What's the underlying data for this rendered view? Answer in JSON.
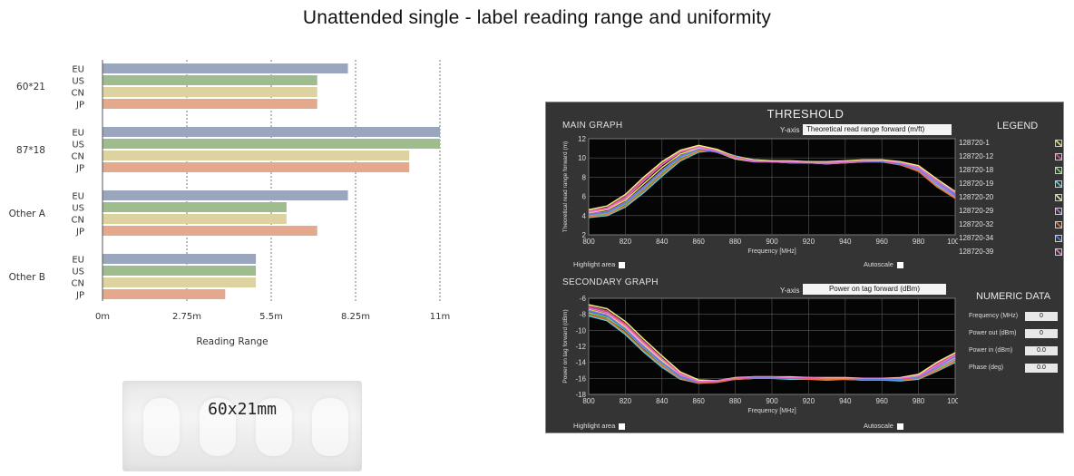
{
  "title": "Unattended single - label reading range and uniformity",
  "chart_data": [
    {
      "type": "bar",
      "orientation": "horizontal",
      "xlabel": "Reading Range",
      "xlim": [
        0,
        11
      ],
      "ticks": [
        "0m",
        "2.75m",
        "5.5m",
        "8.25m",
        "11m"
      ],
      "tick_values": [
        0,
        2.75,
        5.5,
        8.25,
        11
      ],
      "region_colors": {
        "EU": "#9aa6be",
        "US": "#9fbc8e",
        "CN": "#ddd3a1",
        "JP": "#e4a88c"
      },
      "groups": [
        {
          "name": "60*21",
          "bars": [
            {
              "region": "EU",
              "value": 8.0
            },
            {
              "region": "US",
              "value": 7.0
            },
            {
              "region": "CN",
              "value": 7.0
            },
            {
              "region": "JP",
              "value": 7.0
            }
          ]
        },
        {
          "name": "87*18",
          "bars": [
            {
              "region": "EU",
              "value": 11.0
            },
            {
              "region": "US",
              "value": 11.0
            },
            {
              "region": "CN",
              "value": 10.0
            },
            {
              "region": "JP",
              "value": 10.0
            }
          ]
        },
        {
          "name": "Other A",
          "bars": [
            {
              "region": "EU",
              "value": 8.0
            },
            {
              "region": "US",
              "value": 6.0
            },
            {
              "region": "CN",
              "value": 6.0
            },
            {
              "region": "JP",
              "value": 7.0
            }
          ]
        },
        {
          "name": "Other B",
          "bars": [
            {
              "region": "EU",
              "value": 5.0
            },
            {
              "region": "US",
              "value": 5.0
            },
            {
              "region": "CN",
              "value": 5.0
            },
            {
              "region": "JP",
              "value": 4.0
            }
          ]
        }
      ]
    },
    {
      "type": "line",
      "panel": "MAIN GRAPH",
      "xlabel": "Frequency [MHz]",
      "ylabel": "Theoretical read range forward (m)",
      "xlim": [
        800,
        1000
      ],
      "ylim": [
        2,
        12
      ],
      "x_ticks": [
        800,
        820,
        840,
        860,
        880,
        900,
        920,
        940,
        960,
        980,
        1000
      ],
      "y_ticks": [
        2,
        4,
        6,
        8,
        10,
        12
      ],
      "x": [
        800,
        810,
        820,
        830,
        840,
        850,
        860,
        870,
        880,
        890,
        900,
        910,
        920,
        930,
        940,
        950,
        960,
        970,
        980,
        990,
        1000
      ],
      "series": [
        {
          "name": "128720-1",
          "values": [
            4.3,
            4.6,
            5.6,
            7.3,
            9.0,
            10.4,
            11.0,
            10.6,
            9.9,
            9.6,
            9.6,
            9.5,
            9.5,
            9.4,
            9.5,
            9.6,
            9.6,
            9.4,
            8.9,
            7.4,
            6.2
          ]
        },
        {
          "name": "128720-12",
          "values": [
            4.5,
            4.8,
            6.0,
            7.8,
            9.5,
            10.7,
            11.2,
            10.8,
            10.0,
            9.7,
            9.7,
            9.6,
            9.6,
            9.5,
            9.6,
            9.7,
            9.7,
            9.5,
            9.1,
            7.5,
            6.3
          ]
        },
        {
          "name": "128720-18",
          "values": [
            4.0,
            4.2,
            5.2,
            6.8,
            8.5,
            10.0,
            10.8,
            10.7,
            10.1,
            9.7,
            9.6,
            9.6,
            9.5,
            9.5,
            9.5,
            9.7,
            9.6,
            9.3,
            8.7,
            7.1,
            5.9
          ]
        },
        {
          "name": "128720-19",
          "values": [
            3.8,
            4.0,
            4.9,
            6.4,
            8.1,
            9.7,
            10.6,
            10.8,
            10.2,
            9.8,
            9.7,
            9.6,
            9.6,
            9.5,
            9.6,
            9.8,
            9.7,
            9.4,
            8.8,
            7.2,
            6.0
          ]
        },
        {
          "name": "128720-20",
          "values": [
            4.6,
            5.0,
            6.2,
            8.0,
            9.6,
            10.8,
            11.3,
            10.9,
            10.1,
            9.8,
            9.7,
            9.7,
            9.6,
            9.6,
            9.7,
            9.8,
            9.8,
            9.6,
            9.2,
            7.8,
            6.5
          ]
        },
        {
          "name": "128720-29",
          "values": [
            4.2,
            4.4,
            5.4,
            7.0,
            8.7,
            10.2,
            10.9,
            10.6,
            10.0,
            9.6,
            9.6,
            9.5,
            9.5,
            9.4,
            9.5,
            9.6,
            9.6,
            9.3,
            8.7,
            7.3,
            6.0
          ]
        },
        {
          "name": "128720-32",
          "values": [
            3.9,
            4.1,
            5.0,
            6.6,
            8.3,
            9.8,
            10.7,
            10.7,
            10.1,
            9.7,
            9.6,
            9.6,
            9.5,
            9.5,
            9.5,
            9.7,
            9.6,
            9.3,
            8.6,
            7.0,
            5.8
          ]
        },
        {
          "name": "128720-34",
          "values": [
            4.1,
            4.3,
            5.3,
            6.9,
            8.6,
            10.1,
            10.9,
            10.6,
            10.0,
            9.7,
            9.6,
            9.5,
            9.5,
            9.5,
            9.6,
            9.7,
            9.6,
            9.4,
            8.9,
            7.5,
            6.2
          ]
        },
        {
          "name": "128720-39",
          "values": [
            4.4,
            4.7,
            5.8,
            7.6,
            9.3,
            10.6,
            11.1,
            10.7,
            10.0,
            9.7,
            9.6,
            9.6,
            9.5,
            9.5,
            9.6,
            9.7,
            9.7,
            9.5,
            9.0,
            7.6,
            6.4
          ]
        }
      ]
    },
    {
      "type": "line",
      "panel": "SECONDARY GRAPH",
      "xlabel": "Frequency [MHz]",
      "ylabel": "Power on tag forward (dBm)",
      "xlim": [
        800,
        1000
      ],
      "ylim": [
        -18,
        -6
      ],
      "x_ticks": [
        800,
        820,
        840,
        860,
        880,
        900,
        920,
        940,
        960,
        980,
        1000
      ],
      "y_ticks": [
        -6,
        -8,
        -10,
        -12,
        -14,
        -16,
        -18
      ],
      "x": [
        800,
        810,
        820,
        830,
        840,
        850,
        860,
        870,
        880,
        890,
        900,
        910,
        920,
        930,
        940,
        950,
        960,
        970,
        980,
        990,
        1000
      ],
      "series": [
        {
          "name": "128720-1",
          "values": [
            -7.4,
            -8.0,
            -9.6,
            -11.8,
            -13.8,
            -15.6,
            -16.4,
            -16.3,
            -16.0,
            -15.9,
            -15.9,
            -15.9,
            -16.0,
            -16.0,
            -16.0,
            -16.1,
            -16.1,
            -16.1,
            -15.8,
            -14.6,
            -13.4
          ]
        },
        {
          "name": "128720-12",
          "values": [
            -7.0,
            -7.6,
            -9.2,
            -11.4,
            -13.5,
            -15.4,
            -16.3,
            -16.3,
            -16.0,
            -15.8,
            -15.8,
            -15.9,
            -15.9,
            -16.0,
            -16.0,
            -16.0,
            -16.0,
            -16.0,
            -15.6,
            -14.2,
            -13.0
          ]
        },
        {
          "name": "128720-18",
          "values": [
            -7.8,
            -8.4,
            -10.0,
            -12.2,
            -14.2,
            -15.9,
            -16.5,
            -16.4,
            -16.1,
            -16.0,
            -16.0,
            -16.0,
            -16.1,
            -16.1,
            -16.1,
            -16.2,
            -16.2,
            -16.2,
            -16.0,
            -14.9,
            -13.7
          ]
        },
        {
          "name": "128720-19",
          "values": [
            -8.2,
            -8.8,
            -10.5,
            -12.7,
            -14.6,
            -16.1,
            -16.6,
            -16.4,
            -16.1,
            -16.0,
            -16.0,
            -16.1,
            -16.1,
            -16.2,
            -16.1,
            -16.2,
            -16.2,
            -16.3,
            -16.1,
            -15.1,
            -14.0
          ]
        },
        {
          "name": "128720-20",
          "values": [
            -6.8,
            -7.3,
            -8.9,
            -11.1,
            -13.2,
            -15.2,
            -16.2,
            -16.3,
            -15.9,
            -15.8,
            -15.8,
            -15.8,
            -15.9,
            -15.9,
            -15.9,
            -16.0,
            -16.0,
            -15.9,
            -15.5,
            -14.0,
            -12.8
          ]
        },
        {
          "name": "128720-29",
          "values": [
            -7.5,
            -8.1,
            -9.8,
            -12.0,
            -14.0,
            -15.7,
            -16.5,
            -16.4,
            -16.0,
            -15.9,
            -15.9,
            -16.0,
            -16.0,
            -16.1,
            -16.0,
            -16.1,
            -16.1,
            -16.2,
            -15.9,
            -14.7,
            -13.6
          ]
        },
        {
          "name": "128720-32",
          "values": [
            -8.0,
            -8.6,
            -10.3,
            -12.5,
            -14.4,
            -16.0,
            -16.6,
            -16.5,
            -16.1,
            -16.0,
            -16.0,
            -16.0,
            -16.1,
            -16.1,
            -16.1,
            -16.2,
            -16.2,
            -16.2,
            -16.0,
            -15.0,
            -13.9
          ]
        },
        {
          "name": "128720-34",
          "values": [
            -7.6,
            -8.2,
            -9.9,
            -12.1,
            -14.1,
            -15.8,
            -16.5,
            -16.3,
            -16.0,
            -15.9,
            -15.9,
            -16.0,
            -16.0,
            -16.0,
            -16.0,
            -16.1,
            -16.1,
            -16.1,
            -15.8,
            -14.5,
            -13.3
          ]
        },
        {
          "name": "128720-39",
          "values": [
            -7.2,
            -7.8,
            -9.4,
            -11.6,
            -13.6,
            -15.5,
            -16.4,
            -16.3,
            -16.0,
            -15.8,
            -15.8,
            -15.9,
            -15.9,
            -16.0,
            -16.0,
            -16.0,
            -16.0,
            -16.0,
            -15.7,
            -14.4,
            -13.1
          ]
        }
      ]
    }
  ],
  "sample": {
    "label": "60x21mm"
  },
  "panel": {
    "title": "THRESHOLD",
    "main_graph_label": "MAIN GRAPH",
    "secondary_graph_label": "SECONDARY GRAPH",
    "yaxis_label": "Y-axis",
    "main_yaxis_value": "Theoretical read range forward (m/ft)",
    "secondary_yaxis_value": "Power on tag forward (dBm)",
    "highlight_label": "Highlight area",
    "autoscale_label": "Autoscale",
    "legend_title": "LEGEND",
    "legend_colors": [
      "#e8e85a",
      "#e0508a",
      "#7ad85a",
      "#5ad0e0",
      "#f0f080",
      "#b070e0",
      "#e87030",
      "#5080f0",
      "#f070d0"
    ],
    "numeric_title": "NUMERIC DATA",
    "numeric": [
      {
        "label": "Frequency (MHz)",
        "value": "0"
      },
      {
        "label": "Power out (dBm)",
        "value": "0"
      },
      {
        "label": "Power in (dBm)",
        "value": "0.0"
      },
      {
        "label": "Phase (deg)",
        "value": "0.0"
      }
    ]
  }
}
